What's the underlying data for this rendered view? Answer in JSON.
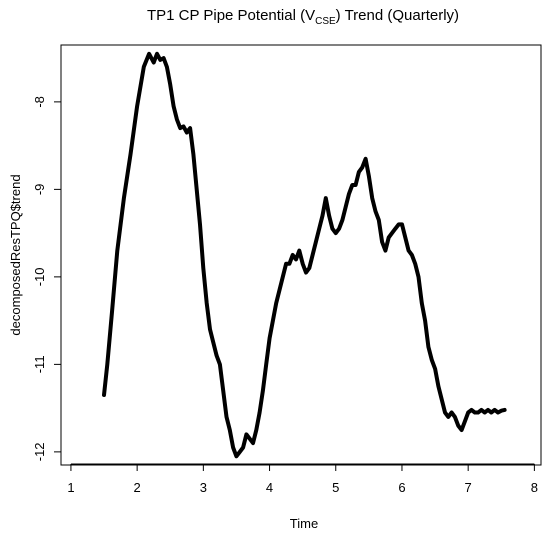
{
  "chart_data": {
    "type": "line",
    "title": {
      "main": "TP1 CP Pipe Potential (V",
      "sub": "CSE",
      "suffix": ") Trend (Quarterly)"
    },
    "xlabel": "Time",
    "ylabel": "decomposedResTPQ$trend",
    "xlim": [
      0.85,
      8.1
    ],
    "ylim": [
      -12.15,
      -7.35
    ],
    "xticks": [
      1,
      2,
      3,
      4,
      5,
      6,
      7,
      8
    ],
    "yticks": [
      -12,
      -11,
      -10,
      -9,
      -8
    ],
    "grid": false,
    "series": [
      {
        "color": "#000000",
        "x": [
          1.5,
          1.55,
          1.62,
          1.7,
          1.8,
          1.9,
          2.0,
          2.1,
          2.18,
          2.25,
          2.3,
          2.35,
          2.4,
          2.45,
          2.5,
          2.55,
          2.6,
          2.65,
          2.7,
          2.75,
          2.8,
          2.85,
          2.9,
          2.95,
          3.0,
          3.05,
          3.1,
          3.15,
          3.2,
          3.25,
          3.3,
          3.35,
          3.4,
          3.45,
          3.5,
          3.55,
          3.6,
          3.65,
          3.7,
          3.75,
          3.8,
          3.85,
          3.9,
          3.95,
          4.0,
          4.05,
          4.1,
          4.15,
          4.2,
          4.25,
          4.3,
          4.35,
          4.4,
          4.45,
          4.5,
          4.55,
          4.6,
          4.65,
          4.7,
          4.75,
          4.8,
          4.85,
          4.9,
          4.95,
          5.0,
          5.05,
          5.1,
          5.15,
          5.2,
          5.25,
          5.3,
          5.35,
          5.4,
          5.45,
          5.5,
          5.55,
          5.6,
          5.65,
          5.7,
          5.75,
          5.8,
          5.85,
          5.9,
          5.95,
          6.0,
          6.05,
          6.1,
          6.15,
          6.2,
          6.25,
          6.3,
          6.35,
          6.4,
          6.45,
          6.5,
          6.55,
          6.6,
          6.65,
          6.7,
          6.75,
          6.8,
          6.85,
          6.9,
          6.95,
          7.0,
          7.05,
          7.1,
          7.15,
          7.2,
          7.25,
          7.3,
          7.35,
          7.4,
          7.45,
          7.5,
          7.55
        ],
        "values": [
          -11.35,
          -11.0,
          -10.4,
          -9.7,
          -9.1,
          -8.6,
          -8.05,
          -7.6,
          -7.45,
          -7.55,
          -7.45,
          -7.52,
          -7.5,
          -7.6,
          -7.8,
          -8.05,
          -8.2,
          -8.3,
          -8.28,
          -8.35,
          -8.3,
          -8.6,
          -9.0,
          -9.4,
          -9.9,
          -10.3,
          -10.6,
          -10.75,
          -10.9,
          -11.0,
          -11.3,
          -11.6,
          -11.75,
          -11.95,
          -12.05,
          -12.0,
          -11.95,
          -11.8,
          -11.85,
          -11.9,
          -11.75,
          -11.55,
          -11.3,
          -11.0,
          -10.7,
          -10.5,
          -10.3,
          -10.15,
          -10.0,
          -9.85,
          -9.85,
          -9.75,
          -9.8,
          -9.7,
          -9.85,
          -9.95,
          -9.9,
          -9.75,
          -9.6,
          -9.45,
          -9.3,
          -9.1,
          -9.3,
          -9.45,
          -9.5,
          -9.45,
          -9.35,
          -9.2,
          -9.05,
          -8.95,
          -8.95,
          -8.8,
          -8.75,
          -8.65,
          -8.85,
          -9.1,
          -9.25,
          -9.35,
          -9.6,
          -9.7,
          -9.55,
          -9.5,
          -9.45,
          -9.4,
          -9.4,
          -9.55,
          -9.7,
          -9.75,
          -9.85,
          -10.0,
          -10.3,
          -10.5,
          -10.8,
          -10.95,
          -11.05,
          -11.25,
          -11.4,
          -11.55,
          -11.6,
          -11.55,
          -11.6,
          -11.7,
          -11.75,
          -11.65,
          -11.55,
          -11.52,
          -11.55,
          -11.55,
          -11.52,
          -11.55,
          -11.52,
          -11.55,
          -11.52,
          -11.55,
          -11.53,
          -11.52
        ]
      }
    ]
  }
}
